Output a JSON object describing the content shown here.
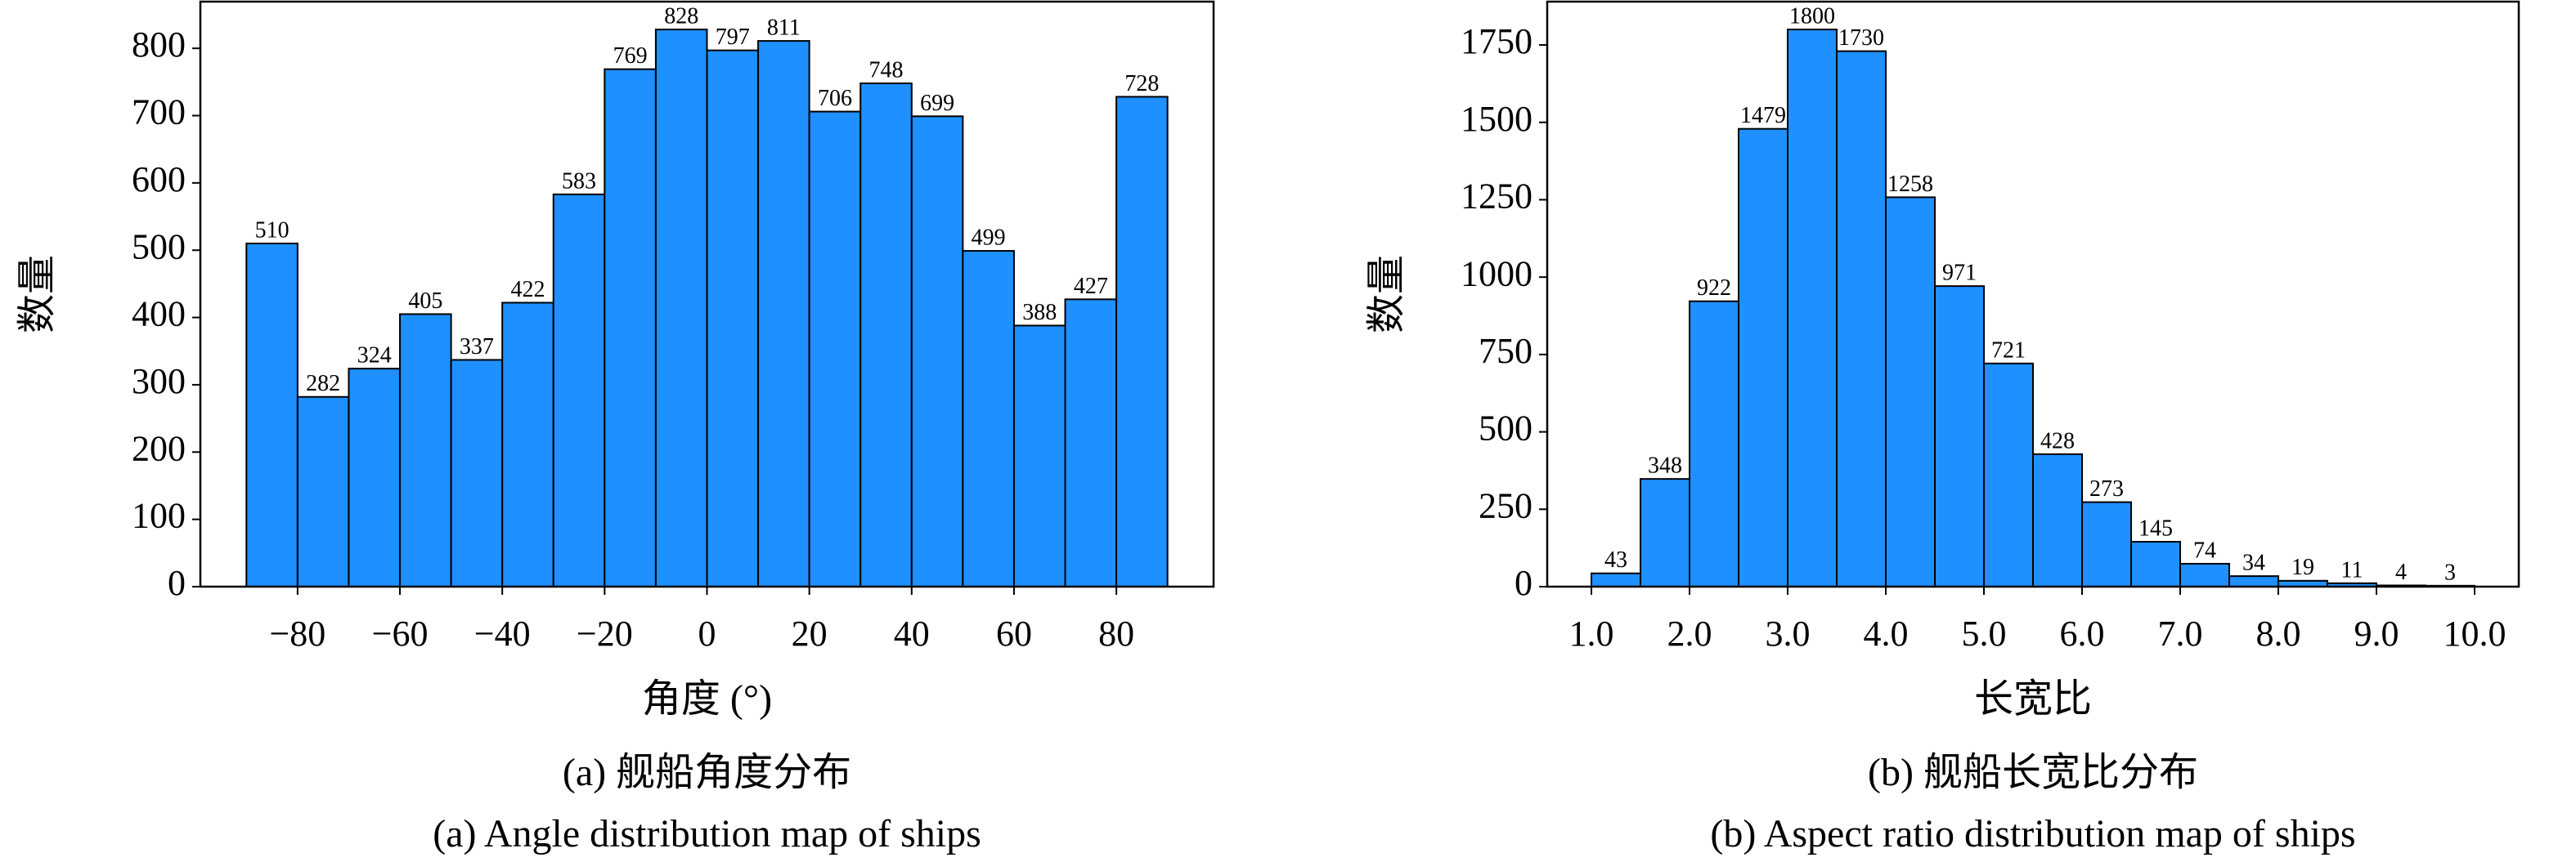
{
  "chart_data": [
    {
      "type": "histogram",
      "ylabel": "数量",
      "xlabel": "角度 (°)",
      "caption": [
        "(a) 舰船角度分布",
        "(a) Angle distribution map of ships"
      ],
      "bins": [
        -90,
        -80,
        -70,
        -60,
        -50,
        -40,
        -30,
        -20,
        -10,
        0,
        10,
        20,
        30,
        40,
        50,
        60,
        70,
        80,
        90
      ],
      "values": [
        510,
        282,
        324,
        405,
        337,
        422,
        583,
        769,
        828,
        797,
        811,
        706,
        748,
        699,
        499,
        388,
        427,
        728
      ],
      "color": "#1e90ff",
      "xlim": [
        -99,
        99
      ],
      "xticks": [
        {
          "value": -80,
          "label": "−80"
        },
        {
          "value": -60,
          "label": "−60"
        },
        {
          "value": -40,
          "label": "−40"
        },
        {
          "value": -20,
          "label": "−20"
        },
        0,
        20,
        40,
        60,
        80
      ],
      "ylim": [
        0,
        869.4
      ],
      "yticks": [
        0,
        100,
        200,
        300,
        400,
        500,
        600,
        700,
        800
      ]
    },
    {
      "type": "histogram",
      "ylabel": "数量",
      "xlabel": "长宽比",
      "caption": [
        "(b) 舰船长宽比分布",
        "(b) Aspect ratio distribution map of ships"
      ],
      "bins": [
        1.0,
        1.5,
        2.0,
        2.5,
        3.0,
        3.5,
        4.0,
        4.5,
        5.0,
        5.5,
        6.0,
        6.5,
        7.0,
        7.5,
        8.0,
        8.5,
        9.0,
        9.5,
        10.0
      ],
      "values": [
        43,
        348,
        922,
        1479,
        1800,
        1730,
        1258,
        971,
        721,
        428,
        273,
        145,
        74,
        34,
        19,
        11,
        4,
        3
      ],
      "color": "#1e90ff",
      "xlim": [
        0.55,
        10.45
      ],
      "xticks": [
        {
          "value": 1,
          "label": "1.0"
        },
        {
          "value": 2,
          "label": "2.0"
        },
        {
          "value": 3,
          "label": "3.0"
        },
        {
          "value": 4,
          "label": "4.0"
        },
        {
          "value": 5,
          "label": "5.0"
        },
        {
          "value": 6,
          "label": "6.0"
        },
        {
          "value": 7,
          "label": "7.0"
        },
        {
          "value": 8,
          "label": "8.0"
        },
        {
          "value": 9,
          "label": "9.0"
        },
        {
          "value": 10,
          "label": "10.0"
        }
      ],
      "ylim": [
        0,
        1890
      ],
      "yticks": [
        0,
        250,
        500,
        750,
        1000,
        1250,
        1500,
        1750
      ]
    }
  ]
}
